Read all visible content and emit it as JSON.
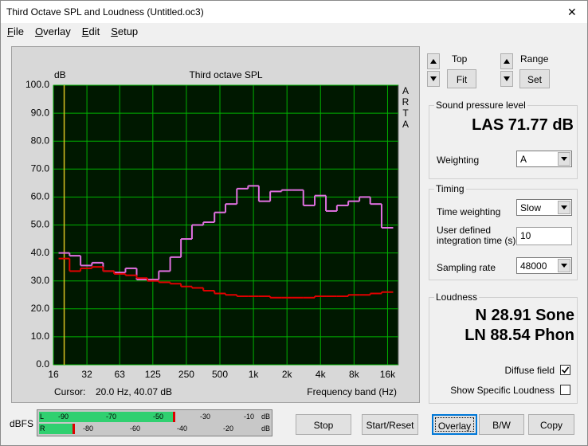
{
  "window": {
    "title": "Third Octave SPL and Loudness (Untitled.oc3)",
    "close": "✕"
  },
  "menu": [
    "File",
    "Overlay",
    "Edit",
    "Setup"
  ],
  "chart_data": {
    "type": "line",
    "title": "Third octave SPL",
    "y_label": "dB",
    "side_label": "ARTA",
    "x_label": "Frequency band (Hz)",
    "cursor_label": "Cursor:",
    "cursor_value": "20.0 Hz, 40.07 dB",
    "cursor_x": 20,
    "cursor_color": "#d8c020",
    "log_x": true,
    "grid": true,
    "grid_color": "#00b000",
    "background": "#001800",
    "xlim": [
      16,
      20000
    ],
    "ylim": [
      0,
      100
    ],
    "xticks": [
      16,
      32,
      63,
      125,
      250,
      500,
      {
        "value": 1000,
        "label": "1k"
      },
      {
        "value": 2000,
        "label": "2k"
      },
      {
        "value": 4000,
        "label": "4k"
      },
      {
        "value": 8000,
        "label": "8k"
      },
      {
        "value": 16000,
        "label": "16k"
      }
    ],
    "yticks": [
      {
        "value": 0,
        "label": "0.0"
      },
      {
        "value": 10,
        "label": "10.0"
      },
      {
        "value": 20,
        "label": "20.0"
      },
      {
        "value": 30,
        "label": "30.0"
      },
      {
        "value": 40,
        "label": "40.0"
      },
      {
        "value": 50,
        "label": "50.0"
      },
      {
        "value": 60,
        "label": "60.0"
      },
      {
        "value": 70,
        "label": "70.0"
      },
      {
        "value": 80,
        "label": "80.0"
      },
      {
        "value": 90,
        "label": "90.0"
      },
      {
        "value": 100,
        "label": "100.0"
      }
    ],
    "x": [
      20,
      25,
      31.5,
      40,
      50,
      63,
      80,
      100,
      125,
      160,
      200,
      250,
      315,
      400,
      500,
      630,
      800,
      1000,
      1250,
      1600,
      2000,
      2500,
      3150,
      4000,
      5000,
      6300,
      8000,
      10000,
      12500,
      16000
    ],
    "series": [
      {
        "color": "#e070e0",
        "values": [
          40,
          39,
          35.5,
          36.5,
          33.5,
          33,
          34.5,
          30.5,
          30.5,
          33.5,
          38.5,
          45,
          50,
          51,
          54.5,
          57.5,
          63,
          64,
          58.5,
          62,
          62.5,
          62.5,
          57,
          60.5,
          55,
          57,
          58.5,
          60,
          57.5,
          49
        ]
      },
      {
        "color": "#e00000",
        "values": [
          38,
          33.5,
          34.5,
          35,
          33.5,
          32.5,
          32,
          31,
          30,
          29.5,
          29,
          28,
          27.5,
          26.5,
          25.5,
          25,
          24.5,
          24.5,
          24.5,
          24,
          24,
          24,
          24,
          24.5,
          24.5,
          24.5,
          25,
          25,
          25.5,
          26
        ]
      }
    ]
  },
  "view": {
    "top": "Top",
    "fit": "Fit",
    "range": "Range",
    "set": "Set"
  },
  "spl": {
    "group": "Sound pressure level",
    "reading": "LAS 71.77 dB",
    "weighting_label": "Weighting",
    "weighting": "A"
  },
  "timing": {
    "group": "Timing",
    "time_weighting_label": "Time weighting",
    "time_weighting": "Slow",
    "integration_label": "User defined integration time (s)",
    "integration": "10",
    "sampling_label": "Sampling rate",
    "sampling": "48000"
  },
  "loudness": {
    "group": "Loudness",
    "n": "N 28.91 Sone",
    "ln": "LN 88.54 Phon",
    "diffuse_label": "Diffuse field",
    "diffuse_checked": true,
    "specific_label": "Show Specific Loudness",
    "specific_checked": false
  },
  "meter": {
    "label": "dBFS",
    "left": "L",
    "right": "R",
    "left_scale": [
      "-90",
      "-70",
      "-50",
      "-30",
      "-10",
      "dB"
    ],
    "right_scale": [
      "-80",
      "-60",
      "-40",
      "-20",
      "dB"
    ]
  },
  "buttons": [
    "Stop",
    "Start/Reset",
    "Overlay",
    "B/W",
    "Copy"
  ]
}
